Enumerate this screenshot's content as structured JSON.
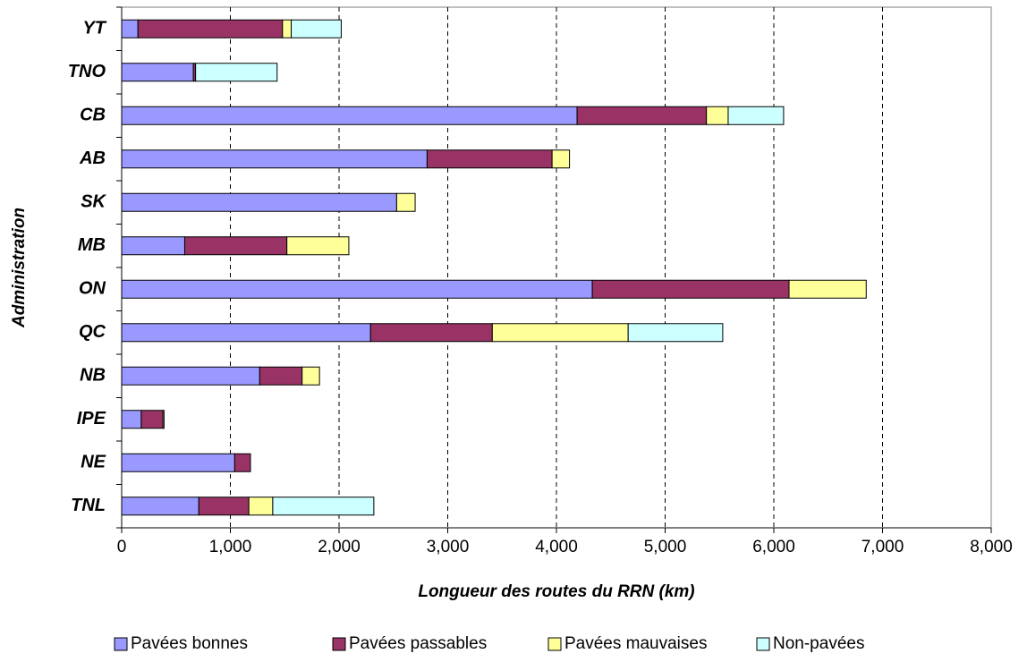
{
  "chart_data": {
    "type": "stacked-barh",
    "categories": [
      "YT",
      "TNO",
      "CB",
      "AB",
      "SK",
      "MB",
      "ON",
      "QC",
      "NB",
      "IPE",
      "NE",
      "TNL"
    ],
    "series": [
      {
        "name": "Pavées bonnes",
        "color": "#9999ff",
        "values": [
          150,
          660,
          4190,
          2810,
          2530,
          580,
          4330,
          2290,
          1270,
          180,
          1040,
          710
        ]
      },
      {
        "name": "Pavées passables",
        "color": "#993366",
        "values": [
          1330,
          20,
          1190,
          1150,
          0,
          940,
          1810,
          1120,
          390,
          200,
          145,
          460
        ]
      },
      {
        "name": "Pavées mauvaises",
        "color": "#ffff99",
        "values": [
          80,
          0,
          200,
          160,
          170,
          570,
          710,
          1250,
          160,
          10,
          0,
          220
        ]
      },
      {
        "name": "Non-pavées",
        "color": "#ccffff",
        "values": [
          460,
          750,
          510,
          0,
          0,
          0,
          0,
          870,
          0,
          0,
          0,
          930
        ]
      }
    ],
    "xlim": [
      0,
      8000
    ],
    "xticks": [
      0,
      {
        "value": 1000,
        "label": "1,000"
      },
      {
        "value": 2000,
        "label": "2,000"
      },
      {
        "value": 3000,
        "label": "3,000"
      },
      {
        "value": 4000,
        "label": "4,000"
      },
      {
        "value": 5000,
        "label": "5,000"
      },
      {
        "value": 6000,
        "label": "6,000"
      },
      {
        "value": 7000,
        "label": "7,000"
      },
      {
        "value": 8000,
        "label": "8,000"
      }
    ],
    "xlabel": "Longueur des routes du RRN (km)",
    "ylabel": "Administration",
    "grid": true,
    "legend": "bottom"
  }
}
